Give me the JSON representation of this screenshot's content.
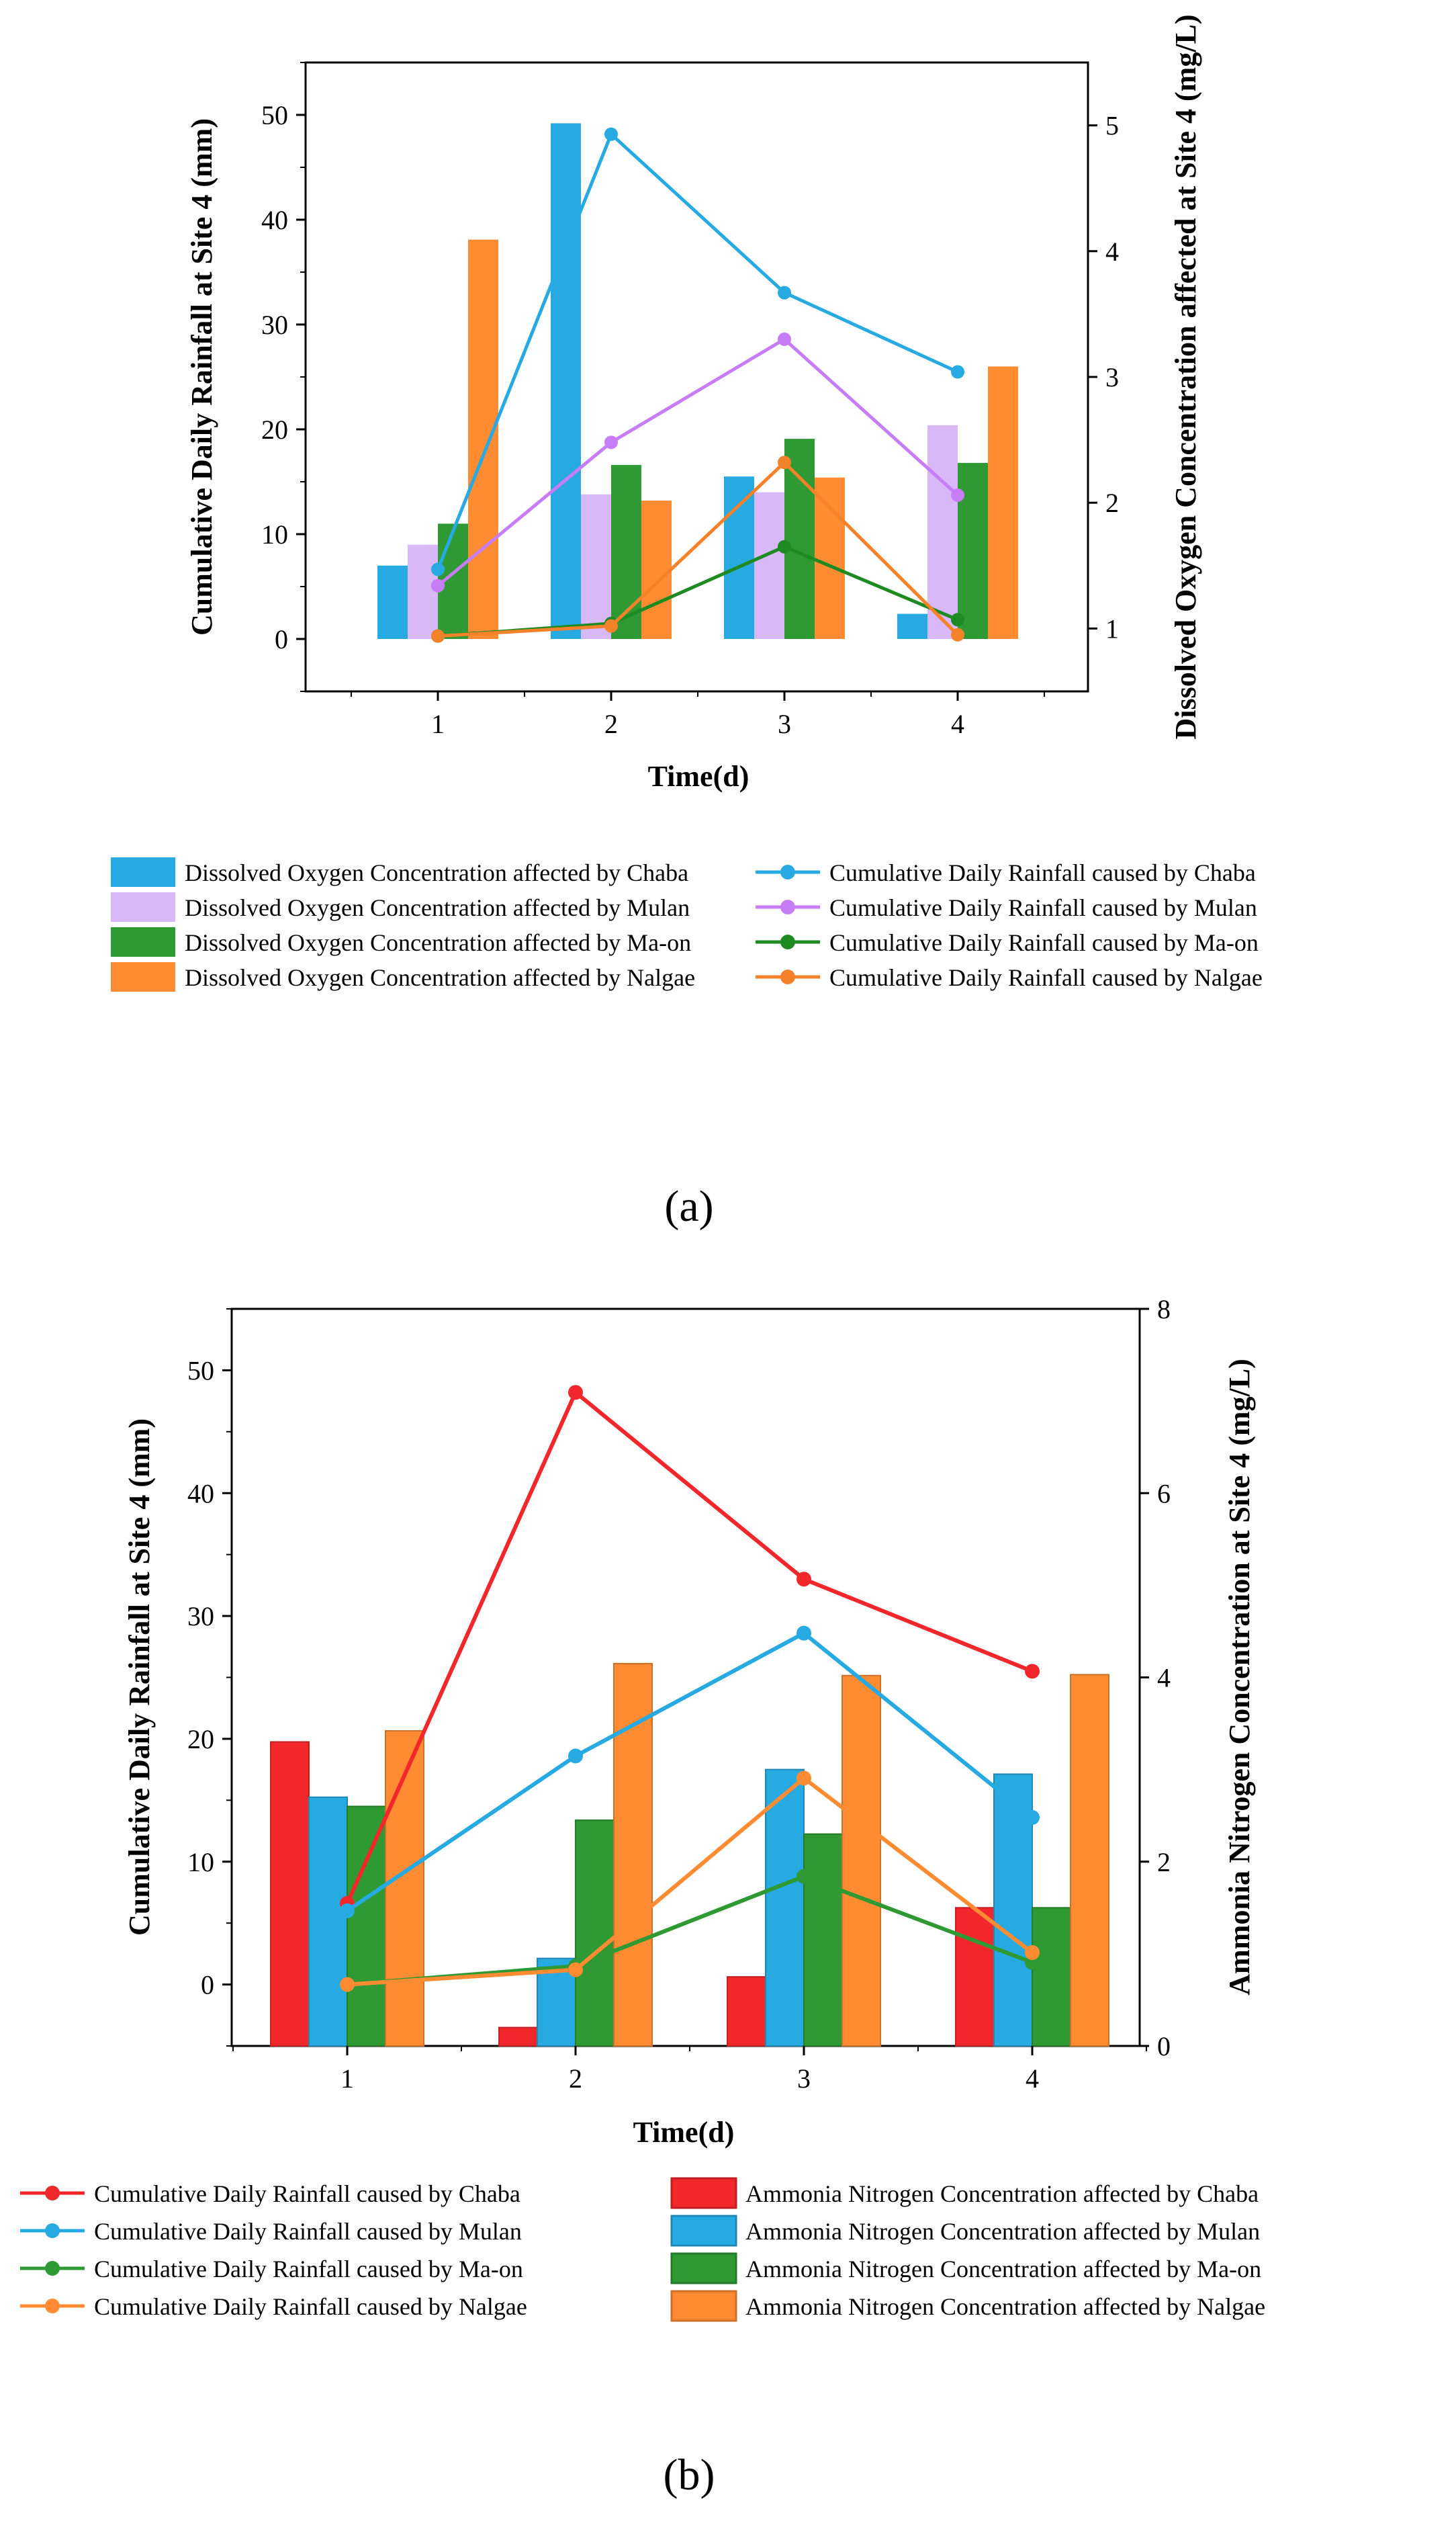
{
  "chart_data": [
    {
      "type": "bar+line",
      "panel_label": "(a)",
      "categories": [
        "1",
        "2",
        "3",
        "4"
      ],
      "xlabel": "Time(d)",
      "ylabel_left": "Cumulative Daily Rainfall at Site 4 (mm)",
      "ylabel_right": "Dissolved Oxygen Concentration affected at Site 4 (mg/L)",
      "ylim_left": [
        -5,
        55
      ],
      "yticks_left": [
        0,
        10,
        20,
        30,
        40,
        50
      ],
      "ylim_right": [
        0.5,
        5.5
      ],
      "yticks_right": [
        1,
        2,
        3,
        4,
        5
      ],
      "bars": [
        {
          "name": "Dissolved Oxygen Concentration affected by Chaba",
          "color": "#27A9E1",
          "values": [
            7.0,
            49.2,
            15.5,
            2.4
          ]
        },
        {
          "name": "Dissolved Oxygen Concentration affected by Mulan",
          "color": "#D9B8F7",
          "values": [
            9.0,
            13.8,
            14.0,
            20.4
          ]
        },
        {
          "name": "Dissolved Oxygen Concentration affected by Ma-on",
          "color": "#2F9A33",
          "values": [
            11.0,
            16.6,
            19.1,
            16.8
          ]
        },
        {
          "name": "Dissolved Oxygen Concentration affected by Nalgae",
          "color": "#FF8C33",
          "values": [
            38.1,
            13.2,
            15.4,
            26.0
          ]
        }
      ],
      "lines": [
        {
          "name": "Cumulative Daily Rainfall caused by Chaba",
          "color": "#27A9E1",
          "values": [
            1.47,
            4.93,
            3.67,
            3.04
          ]
        },
        {
          "name": "Cumulative Daily Rainfall caused by Mulan",
          "color": "#C77DF5",
          "values": [
            1.34,
            2.48,
            3.3,
            2.06
          ]
        },
        {
          "name": "Cumulative Daily Rainfall caused by Ma-on",
          "color": "#1E8A22",
          "values": [
            0.94,
            1.04,
            1.65,
            1.07
          ]
        },
        {
          "name": "Cumulative Daily Rainfall caused by Nalgae",
          "color": "#F4822A",
          "values": [
            0.94,
            1.02,
            2.32,
            0.95
          ]
        }
      ]
    },
    {
      "type": "bar+line",
      "panel_label": "(b)",
      "categories": [
        "1",
        "2",
        "3",
        "4"
      ],
      "xlabel": "Time(d)",
      "ylabel_left": "Cumulative Daily Rainfall at Site 4 (mm)",
      "ylabel_right": "Ammonia Nitrogen Concentration at Site 4 (mg/L)",
      "ylim_left": [
        -5,
        55
      ],
      "yticks_left": [
        0,
        10,
        20,
        30,
        40,
        50
      ],
      "ylim_right": [
        0,
        8
      ],
      "yticks_right": [
        0,
        2,
        4,
        6,
        8
      ],
      "lines": [
        {
          "name": "Cumulative Daily Rainfall caused by Chaba",
          "color": "#F2272B",
          "values": [
            6.6,
            48.2,
            33.0,
            25.5
          ]
        },
        {
          "name": "Cumulative Daily Rainfall caused by Mulan",
          "color": "#27A9E1",
          "values": [
            6.0,
            18.6,
            28.6,
            13.6
          ]
        },
        {
          "name": "Cumulative Daily Rainfall caused by Ma-on",
          "color": "#2F9A33",
          "values": [
            0.0,
            1.5,
            8.8,
            1.8
          ]
        },
        {
          "name": "Cumulative Daily Rainfall caused by Nalgae",
          "color": "#FF8C33",
          "values": [
            0.0,
            1.2,
            16.8,
            2.6
          ]
        }
      ],
      "bars": [
        {
          "name": "Ammonia Nitrogen Concentration affected by Chaba",
          "color": "#F2272B",
          "values": [
            3.3,
            0.2,
            0.75,
            1.5
          ]
        },
        {
          "name": "Ammonia Nitrogen Concentration affected by Mulan",
          "color": "#27A9E1",
          "values": [
            2.7,
            0.95,
            3.0,
            2.95
          ]
        },
        {
          "name": "Ammonia Nitrogen Concentration affected by Ma-on",
          "color": "#2F9A33",
          "values": [
            2.6,
            2.45,
            2.3,
            1.5
          ]
        },
        {
          "name": "Ammonia Nitrogen Concentration affected by Nalgae",
          "color": "#FF8C33",
          "values": [
            3.42,
            4.15,
            4.02,
            4.03
          ]
        }
      ]
    }
  ]
}
